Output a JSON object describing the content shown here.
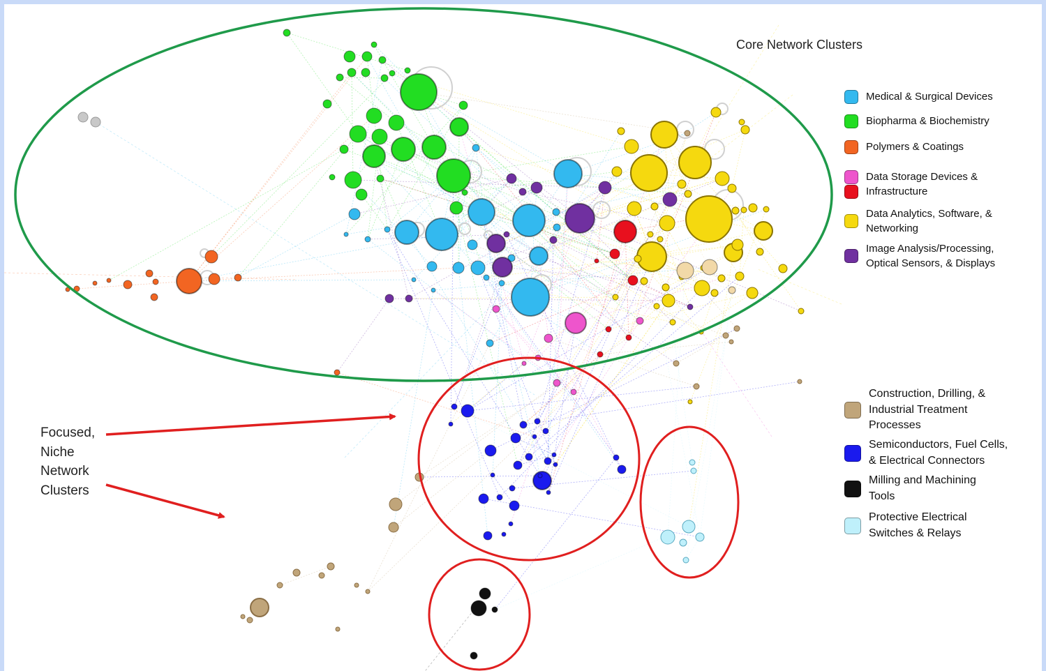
{
  "diagram": {
    "core_title": "Core Network Clusters",
    "niche_title": [
      "Focused,",
      "Niche",
      "Network",
      "Clusters"
    ]
  },
  "legend_core": [
    {
      "lines": [
        "Medical & Surgical Devices"
      ],
      "color": "#33b9ef"
    },
    {
      "lines": [
        "Biopharma & Biochemistry"
      ],
      "color": "#22dd22"
    },
    {
      "lines": [
        "Polymers & Coatings"
      ],
      "color": "#f26522"
    },
    {
      "lines": [
        "Data Storage Devices &"
      ],
      "color": "#ee55cc"
    },
    {
      "lines": [
        "Infrastructure"
      ],
      "color": "#e8101e"
    },
    {
      "lines": [
        "Data Analytics, Software, &",
        "Networking"
      ],
      "color": "#f5d90f"
    },
    {
      "lines": [
        "Image Analysis/Processing,",
        "Optical Sensors, & Displays"
      ],
      "color": "#7030a0"
    }
  ],
  "legend_niche": [
    {
      "lines": [
        "Construction, Drilling, &",
        "Industrial Treatment",
        "Processes"
      ],
      "color": "#c0a57a"
    },
    {
      "lines": [
        "Semiconductors, Fuel Cells,",
        "& Electrical Connectors"
      ],
      "color": "#1a1aee"
    },
    {
      "lines": [
        "Milling and Machining",
        "Tools"
      ],
      "color": "#111111"
    },
    {
      "lines": [
        "Protective Electrical",
        "Switches & Relays"
      ],
      "color": "#bff0fb"
    }
  ]
}
